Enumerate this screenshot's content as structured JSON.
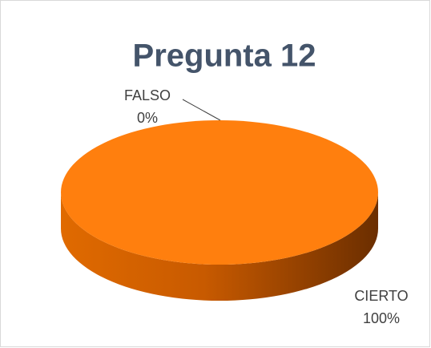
{
  "chart_data": {
    "type": "pie",
    "title": "Pregunta 12",
    "categories": [
      "CIERTO",
      "FALSO"
    ],
    "values": [
      100,
      0
    ],
    "value_labels": [
      "100%",
      "0%"
    ],
    "colors": [
      "#ff7f0e",
      "#4472c4"
    ]
  }
}
